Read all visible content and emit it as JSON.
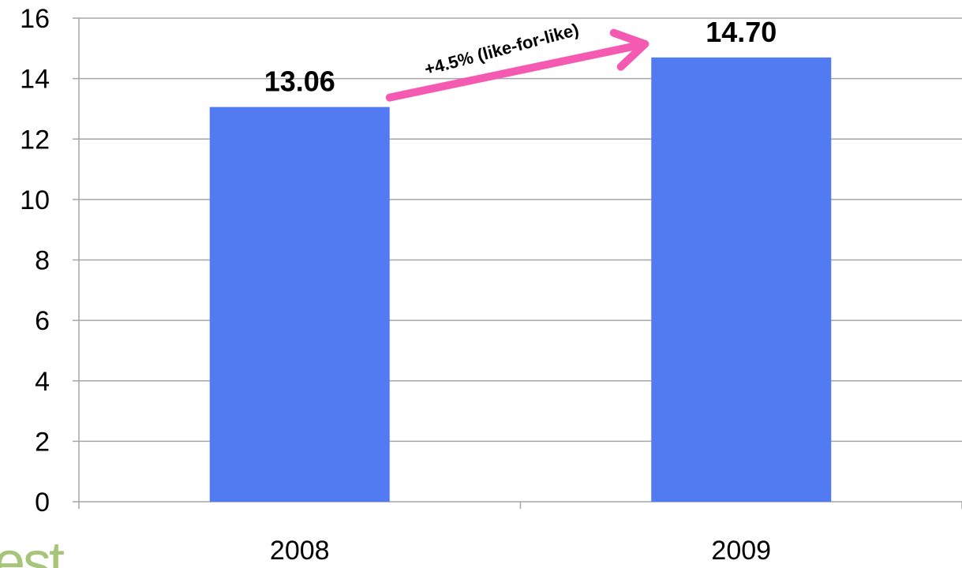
{
  "chart_data": {
    "type": "bar",
    "categories": [
      "2008",
      "2009"
    ],
    "values": [
      13.06,
      14.7
    ],
    "data_labels": [
      "13.06",
      "14.70"
    ],
    "ylim": [
      0,
      16
    ],
    "yticks": [
      0,
      2,
      4,
      6,
      8,
      10,
      12,
      14,
      16
    ],
    "grid": true,
    "legend": "none",
    "annotation": {
      "text": "+4.5% (like-for-like)",
      "from_category": "2008",
      "to_category": "2009"
    }
  },
  "logo": {
    "visible_text": "est"
  },
  "colors": {
    "bar": "#527bf2",
    "gridline": "#a6a6a6",
    "arrow": "#f45ab1",
    "logo": "#a6c57a"
  }
}
